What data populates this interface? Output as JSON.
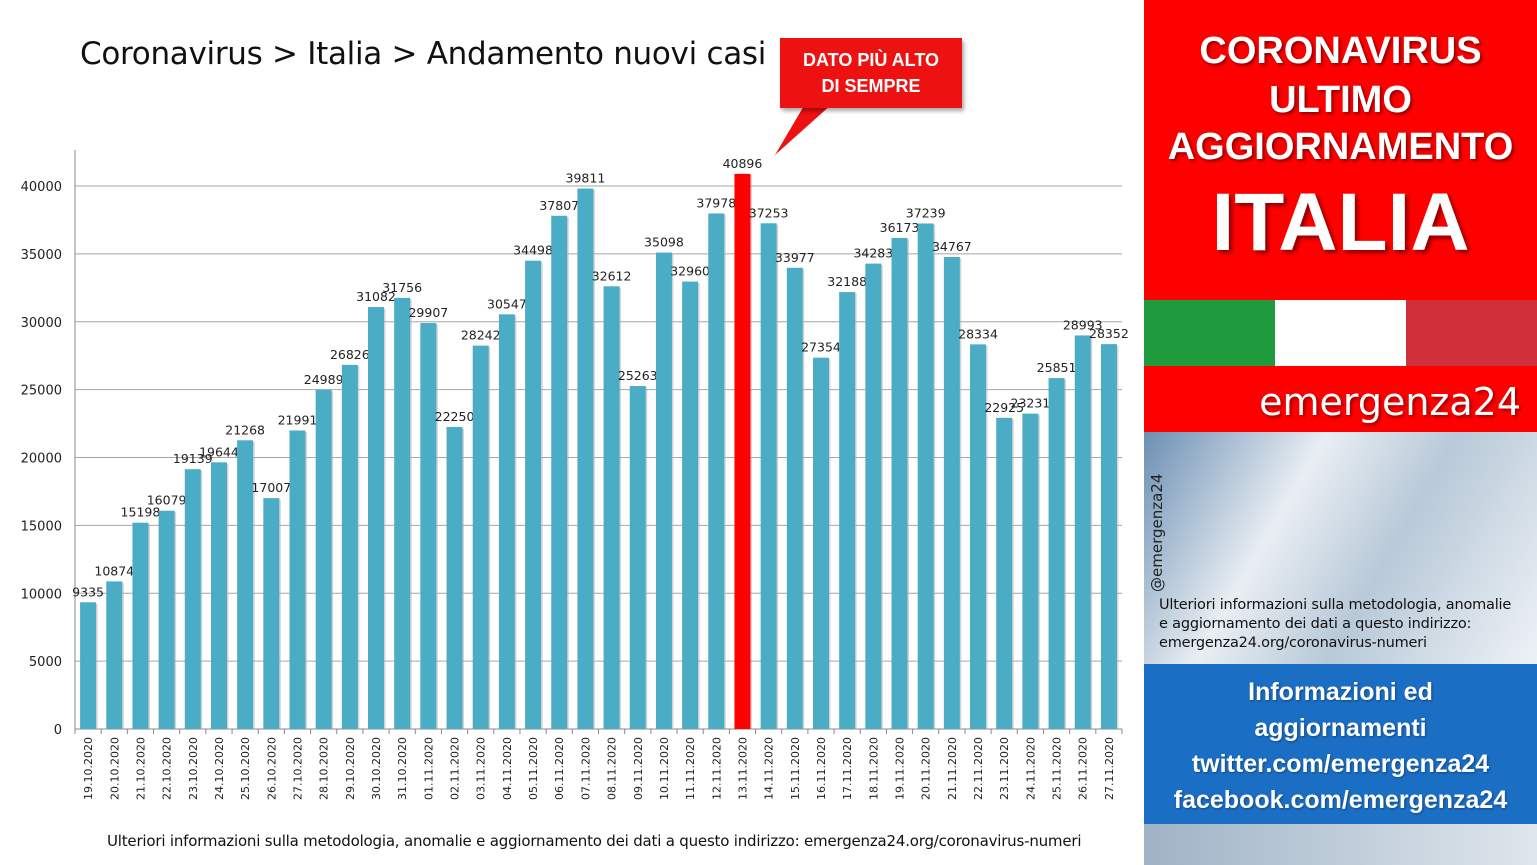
{
  "title": "Coronavirus > Italia > Andamento nuovi casi",
  "callout": {
    "line1": "DATO PIÙ ALTO",
    "line2": "DI SEMPRE"
  },
  "footer_note": "Ulteriori informazioni sulla metodologia, anomalie e aggiornamento dei dati a questo indirizzo: emergenza24.org/coronavirus-numeri",
  "panel": {
    "header_line1": "CORONAVIRUS",
    "header_line2": "ULTIMO",
    "header_line3": "AGGIORNAMENTO",
    "country": "ITALIA",
    "brand": "emergenza24",
    "handle": "@emergenza24",
    "method_line1": "Ulteriori informazioni sulla metodologia, anomalie",
    "method_line2": "e aggiornamento dei dati a questo indirizzo:",
    "method_line3": "emergenza24.org/coronavirus-numeri",
    "info_line1": "Informazioni ed",
    "info_line2": "aggiornamenti",
    "info_line3": "twitter.com/emergenza24",
    "info_line4": "facebook.com/emergenza24"
  },
  "colors": {
    "bar": "#4bacc6",
    "highlight": "#ff0000",
    "grid": "#a6a6a6",
    "header_red": "#fe0000",
    "info_blue": "#1a6ec4",
    "flag_green": "#1f9a3c",
    "flag_white": "#ffffff",
    "flag_red": "#d12f3a"
  },
  "chart_data": {
    "type": "bar",
    "title": "Coronavirus > Italia > Andamento nuovi casi",
    "xlabel": "",
    "ylabel": "",
    "ylim": [
      0,
      42000
    ],
    "yticks": [
      0,
      5000,
      10000,
      15000,
      20000,
      25000,
      30000,
      35000,
      40000
    ],
    "grid": true,
    "legend": "none",
    "highlight_index": 25,
    "categories": [
      "19.10.2020",
      "20.10.2020",
      "21.10.2020",
      "22.10.2020",
      "23.10.2020",
      "24.10.2020",
      "25.10.2020",
      "26.10.2020",
      "27.10.2020",
      "28.10.2020",
      "29.10.2020",
      "30.10.2020",
      "31.10.2020",
      "01.11.2020",
      "02.11.2020",
      "03.11.2020",
      "04.11.2020",
      "05.11.2020",
      "06.11.2020",
      "07.11.2020",
      "08.11.2020",
      "09.11.2020",
      "10.11.2020",
      "11.11.2020",
      "12.11.2020",
      "13.11.2020",
      "14.11.2020",
      "15.11.2020",
      "16.11.2020",
      "17.11.2020",
      "18.11.2020",
      "19.11.2020",
      "20.11.2020",
      "21.11.2020",
      "22.11.2020",
      "23.11.2020",
      "24.11.2020",
      "25.11.2020",
      "26.11.2020",
      "27.11.2020"
    ],
    "values": [
      9335,
      10874,
      15198,
      16079,
      19139,
      19644,
      21268,
      17007,
      21991,
      24989,
      26826,
      31082,
      31756,
      29907,
      22250,
      28242,
      30547,
      34498,
      37807,
      39811,
      32612,
      25263,
      35098,
      32960,
      37978,
      40896,
      37253,
      33977,
      27354,
      32188,
      34283,
      36173,
      37239,
      34767,
      28334,
      22925,
      23231,
      25851,
      28993,
      28352
    ]
  }
}
